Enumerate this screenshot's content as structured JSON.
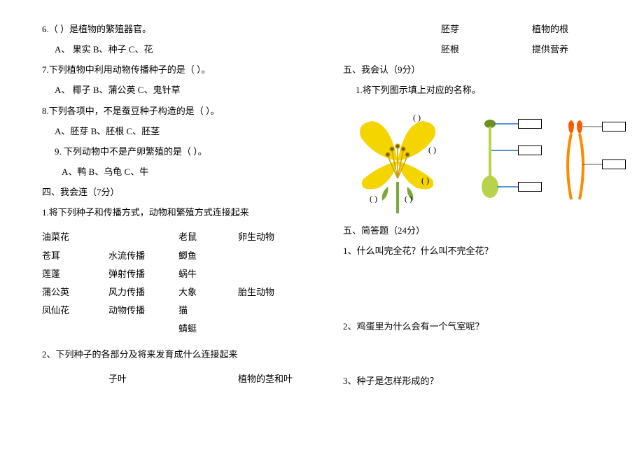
{
  "font": {
    "family": "SimSun",
    "size_pt": 10,
    "color": "#000000"
  },
  "background_color": "#ffffff",
  "left": {
    "q6": {
      "stem": "6.（    ）是植物的繁殖器官。",
      "opts": "A、  果实      B、种子      C、花"
    },
    "q7": {
      "stem": "7.下列植物中利用动物传播种子的是（    ）。",
      "opts": "A、  椰子      B、蒲公英      C、鬼针草"
    },
    "q8": {
      "stem": "8.下列各项中，不是蚕豆种子构造的是（    ）。",
      "opts": "A、胚芽      B、胚根      C、胚茎"
    },
    "q9": {
      "stem": "9. 下列动物中不是产卵繁殖的是（    ）。",
      "opts": "A、鸭      B、乌龟       C、牛"
    },
    "sec4": {
      "heading": "四、我会连（7分）",
      "sub1": "1.将下列种子和传播方式，动物和繁殖方式连接起来"
    },
    "match": {
      "rows": [
        {
          "c1": "油菜花",
          "c2": "",
          "c3": "老鼠",
          "c4": "卵生动物"
        },
        {
          "c1": "苍耳",
          "c2": "水流传播",
          "c3": "鲫鱼",
          "c4": ""
        },
        {
          "c1": "莲蓬",
          "c2": "弹射传播",
          "c3": "蜗牛",
          "c4": ""
        },
        {
          "c1": "蒲公英",
          "c2": "风力传播",
          "c3": "大象",
          "c4": "胎生动物"
        },
        {
          "c1": "凤仙花",
          "c2": "动物传播",
          "c3": "猫",
          "c4": ""
        },
        {
          "c1": "",
          "c2": "",
          "c3": "蜻蜓",
          "c4": ""
        }
      ]
    },
    "sub2": "2、下列种子的各部分及将来发育成什么连接起来",
    "seed_line": {
      "a": "子叶",
      "b": "植物的茎和叶"
    }
  },
  "right": {
    "seed_pairs": [
      {
        "a": "胚芽",
        "b": "植物的根"
      },
      {
        "a": "胚根",
        "b": "提供营养"
      }
    ],
    "sec5a": {
      "heading": "五、我会认（9分）",
      "sub1": "1.将下列图示填上对应的名称。"
    },
    "figures": {
      "flower": {
        "type": "labeled-diagram",
        "petal_color": "#f5d500",
        "stamen_color": "#c9a100",
        "stamen_tip_color": "#7a5a00",
        "pistil_color": "#7aa83a",
        "stem_color": "#7aa83a",
        "label_parens": 5
      },
      "pistil": {
        "type": "labeled-diagram",
        "body_color": "#b9d24b",
        "tip_color": "#6f8f1f",
        "lead_color": "#1f6fc5",
        "boxes": 3
      },
      "stamen": {
        "type": "labeled-diagram",
        "filament_color": "#ff8a00",
        "anther_color": "#ff5a00",
        "lead_color": "#555555",
        "boxes": 2
      }
    },
    "sec5b": {
      "heading": "五、简答题（24分）",
      "q1": "1、什么叫完全花？什么叫不完全花？",
      "q2": "2、鸡蛋里为什么会有一个气室呢？",
      "q3": "3、种子是怎样形成的？"
    }
  }
}
